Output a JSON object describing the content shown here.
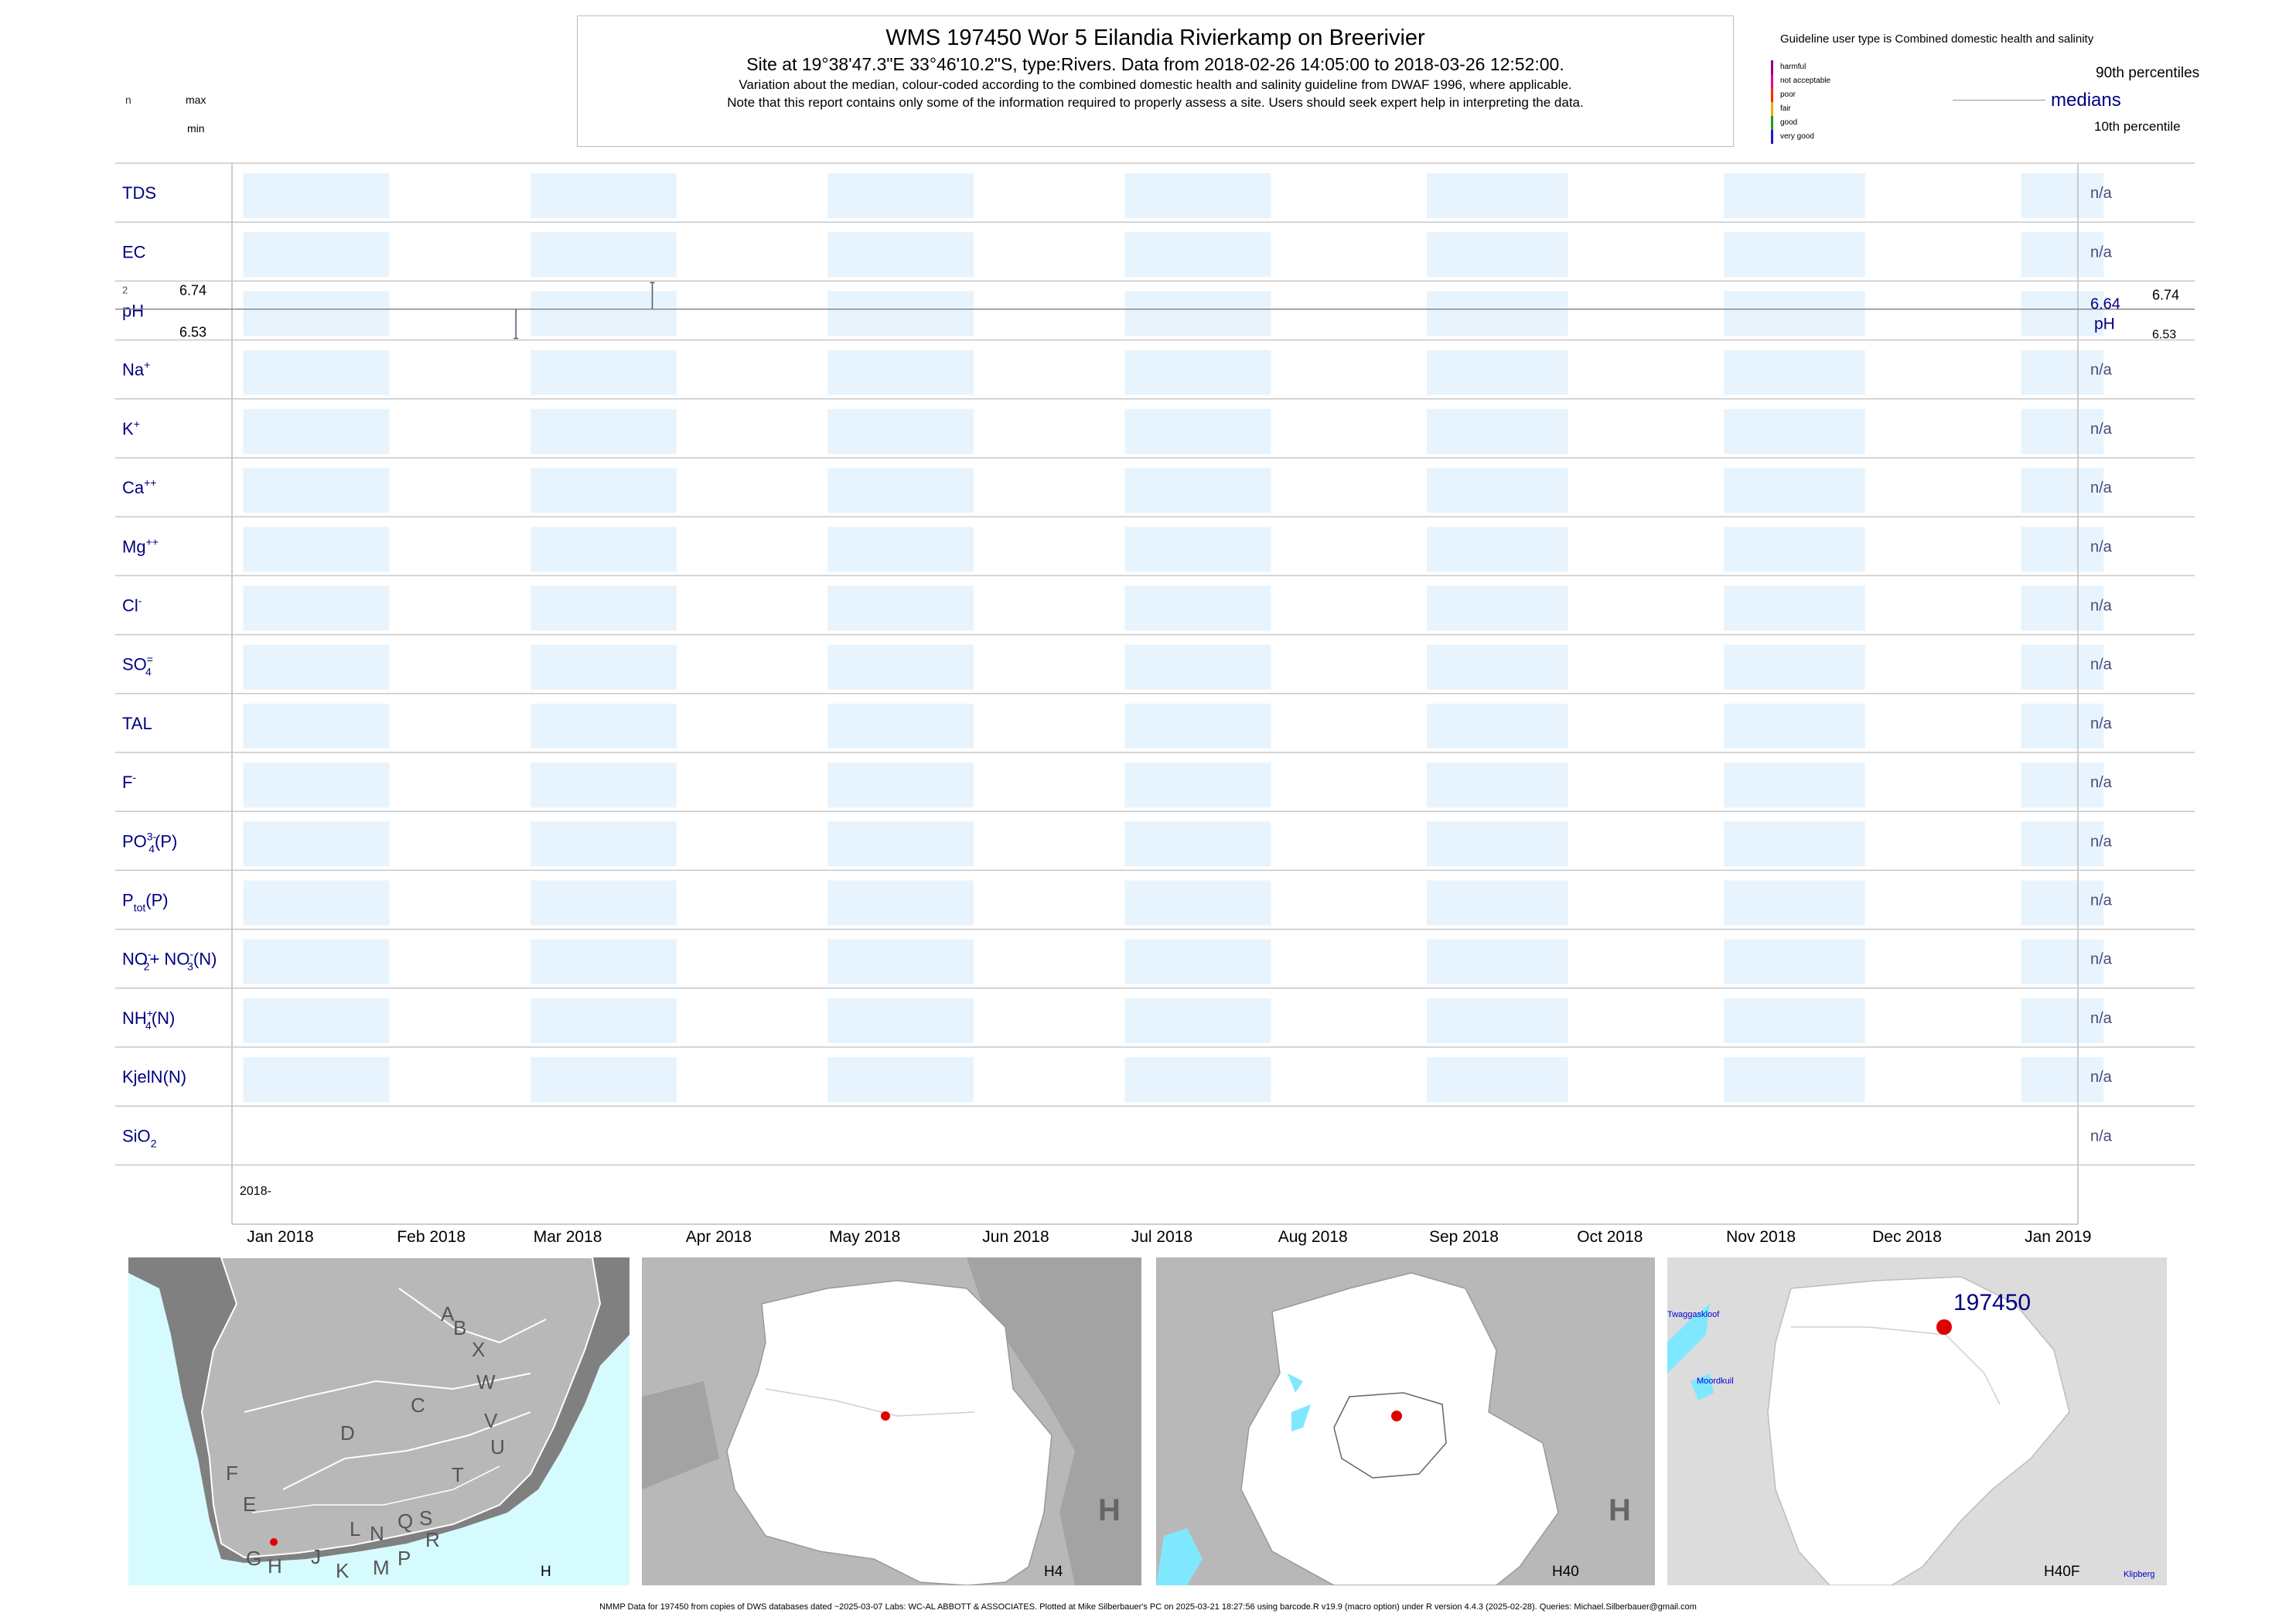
{
  "header": {
    "title": "WMS 197450  Wor 5 Eilandia Rivierkamp on Breerivier",
    "subtitle": "Site at 19°38'47.3\"E 33°46'10.2\"S, type:Rivers.  Data from 2018-02-26 14:05:00 to 2018-03-26 12:52:00.",
    "note1": "Variation about the median,  colour-coded according to the combined domestic health and salinity guideline from DWAF 1996, where applicable.",
    "note2": "Note that this report contains only some of the information required to properly assess a site. Users should seek expert help in interpreting the data."
  },
  "left_key": {
    "n": "n",
    "max": "max",
    "min": "min"
  },
  "legend": {
    "guideline_text": "Guideline user type is Combined domestic health and salinity",
    "categories": [
      {
        "label": "harmful",
        "color": "#8b008b"
      },
      {
        "label": "not acceptable",
        "color": "#e8008a"
      },
      {
        "label": "poor",
        "color": "#ff2a00"
      },
      {
        "label": "fair",
        "color": "#e8b000"
      },
      {
        "label": "good",
        "color": "#1aa01a"
      },
      {
        "label": "very good",
        "color": "#1a1acd"
      }
    ],
    "p90": "90th percentiles",
    "medians": "medians",
    "p10": "10th percentile"
  },
  "chart_data": {
    "type": "barcode",
    "x_start_label": "2018-",
    "months": [
      "Jan 2018",
      "Feb 2018",
      "Mar 2018",
      "Apr 2018",
      "May 2018",
      "Jun 2018",
      "Jul 2018",
      "Aug 2018",
      "Sep 2018",
      "Oct 2018",
      "Nov 2018",
      "Dec 2018",
      "Jan 2019"
    ],
    "shade_color": "#e8f4fd",
    "rows": [
      {
        "id": "tds",
        "label": "TDS",
        "sub": "",
        "sup": "",
        "right": "n/a"
      },
      {
        "id": "ec",
        "label": "EC",
        "sub": "",
        "sup": "",
        "right": "n/a"
      },
      {
        "id": "ph",
        "label": "pH",
        "sub": "",
        "sup": "",
        "right": "",
        "n": "2",
        "max": "6.74",
        "min": "6.53",
        "median": "6.64",
        "right_max": "6.74",
        "right_min": "6.53",
        "samples": [
          {
            "date": "2018-02-26",
            "value": 6.53
          },
          {
            "date": "2018-03-26",
            "value": 6.74
          }
        ]
      },
      {
        "id": "na",
        "label": "Na",
        "sub": "",
        "sup": "+",
        "right": "n/a"
      },
      {
        "id": "k",
        "label": "K",
        "sub": "",
        "sup": "+",
        "right": "n/a"
      },
      {
        "id": "ca",
        "label": "Ca",
        "sub": "",
        "sup": "++",
        "right": "n/a"
      },
      {
        "id": "mg",
        "label": "Mg",
        "sub": "",
        "sup": "++",
        "right": "n/a"
      },
      {
        "id": "cl",
        "label": "Cl",
        "sub": "",
        "sup": "-",
        "right": "n/a"
      },
      {
        "id": "so4",
        "label": "SO",
        "sub": "4",
        "sup": "=",
        "right": "n/a"
      },
      {
        "id": "tal",
        "label": "TAL",
        "sub": "",
        "sup": "",
        "right": "n/a"
      },
      {
        "id": "f",
        "label": "F",
        "sub": "",
        "sup": "-",
        "right": "n/a"
      },
      {
        "id": "po4",
        "label": "PO",
        "sub": "4",
        "sup": "3-",
        "tail": "(P)",
        "right": "n/a"
      },
      {
        "id": "ptot",
        "label": "P",
        "sub": "tot",
        "sup": "",
        "tail": "(P)",
        "right": "n/a"
      },
      {
        "id": "nox",
        "label": "NO",
        "sub": "2",
        "sup": "-",
        "tail": "+ NO",
        "sub2": "3",
        "sup2": "-",
        "tail2": "(N)",
        "right": "n/a"
      },
      {
        "id": "nh4",
        "label": "NH",
        "sub": "4",
        "sup": "+",
        "tail": "(N)",
        "right": "n/a"
      },
      {
        "id": "kjel",
        "label": "KjelN(N)",
        "sub": "",
        "sup": "",
        "right": "n/a"
      },
      {
        "id": "sio2",
        "label": "SiO",
        "sub": "2",
        "sup": "",
        "right": "n/a"
      }
    ]
  },
  "maps": {
    "region_letters": [
      "A",
      "B",
      "X",
      "W",
      "C",
      "V",
      "D",
      "U",
      "T",
      "F",
      "E",
      "L",
      "N",
      "Q",
      "S",
      "R",
      "G",
      "H",
      "J",
      "K",
      "M",
      "P"
    ],
    "captions": [
      "H",
      "H4",
      "H40",
      "H40F"
    ],
    "site_label": "197450",
    "place_labels": [
      "Twaggaskloof",
      "Moordkuil",
      "Klipberg"
    ],
    "dot_color": "#e00000"
  },
  "footer": "NMMP Data for 197450 from copies of DWS databases dated ~2025-03-07 Labs: WC-AL ABBOTT & ASSOCIATES. Plotted at Mike Silberbauer's PC on 2025-03-21 18:27:56 using barcode.R v19.9 (macro option) under R version 4.4.3 (2025-02-28). Queries: Michael.Silberbauer@gmail.com"
}
